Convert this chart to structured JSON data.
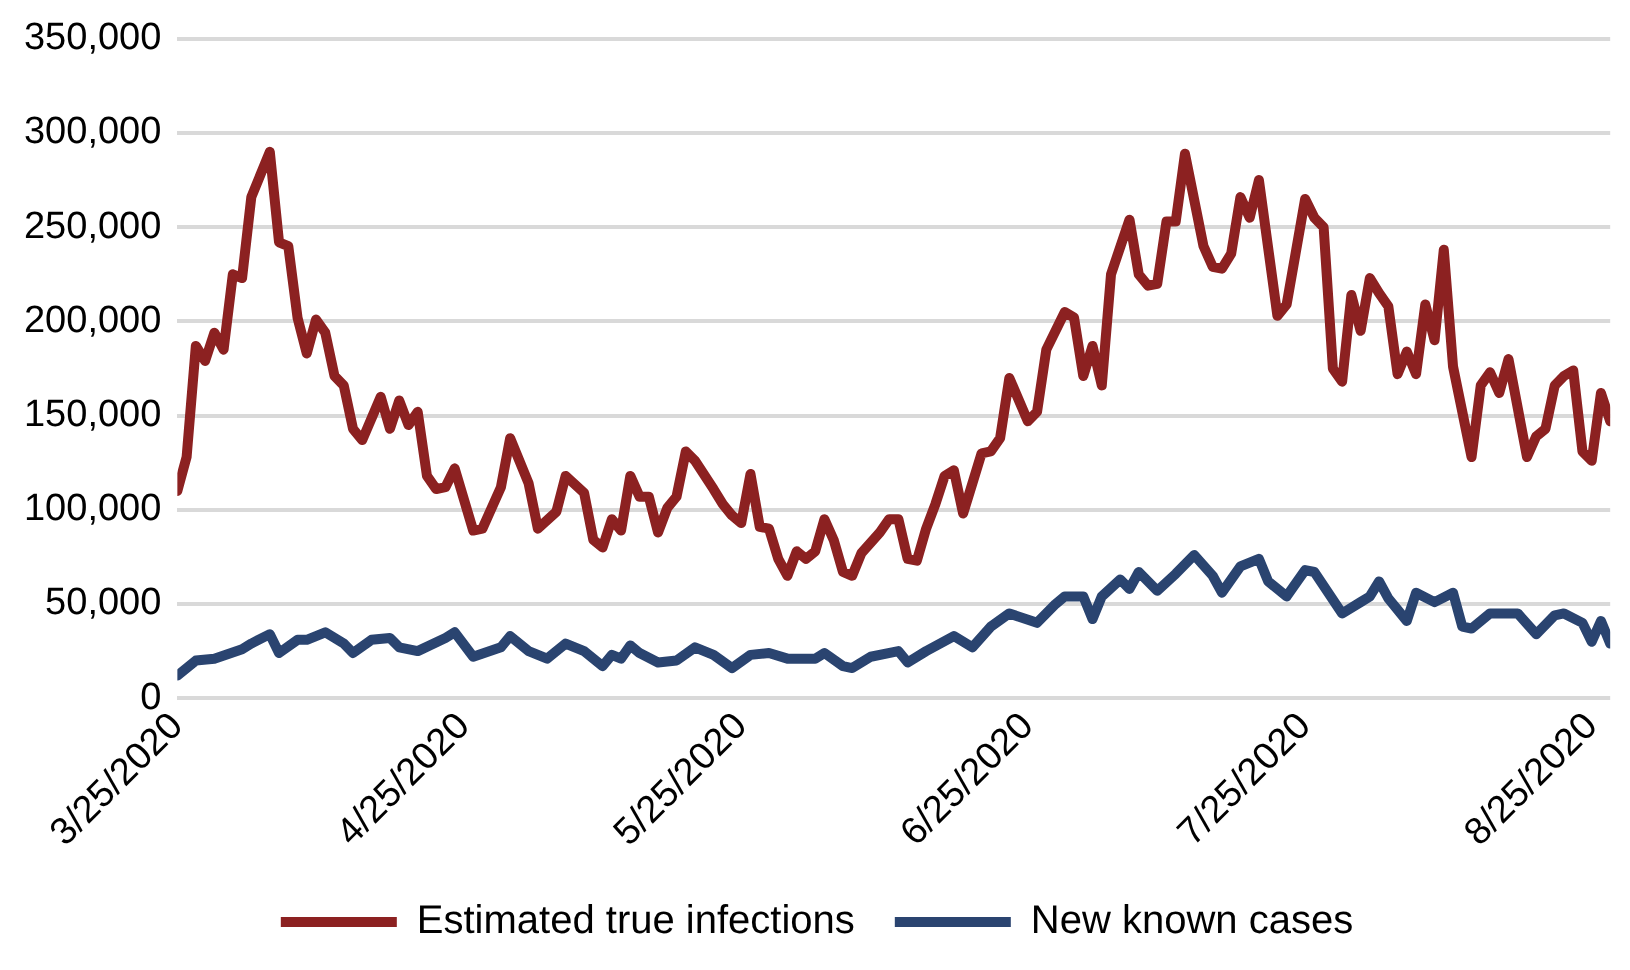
{
  "chart_data": {
    "type": "line",
    "xlim": [
      "2020-03-25",
      "2020-08-27"
    ],
    "xticks": [
      {
        "value": "2020-03-25",
        "label": "3/25/2020"
      },
      {
        "value": "2020-04-25",
        "label": "4/25/2020"
      },
      {
        "value": "2020-05-25",
        "label": "5/25/2020"
      },
      {
        "value": "2020-06-25",
        "label": "6/25/2020"
      },
      {
        "value": "2020-07-25",
        "label": "7/25/2020"
      },
      {
        "value": "2020-08-25",
        "label": "8/25/2020"
      }
    ],
    "ylim": [
      0,
      350000
    ],
    "yticks": [
      0,
      {
        "value": 50000,
        "label": "50,000"
      },
      {
        "value": 100000,
        "label": "100,000"
      },
      {
        "value": 150000,
        "label": "150,000"
      },
      {
        "value": 200000,
        "label": "200,000"
      },
      {
        "value": 250000,
        "label": "250,000"
      },
      {
        "value": 300000,
        "label": "300,000"
      },
      {
        "value": 350000,
        "label": "350,000"
      }
    ],
    "grid": "y",
    "legend": "bottom",
    "marker": "none",
    "line_style": "solid",
    "series": [
      {
        "name": "Estimated true infections",
        "color": "#8c2121",
        "x": [
          "2020-03-25",
          "2020-03-26",
          "2020-03-27",
          "2020-03-28",
          "2020-03-29",
          "2020-03-30",
          "2020-03-31",
          "2020-04-01",
          "2020-04-02",
          "2020-04-04",
          "2020-04-05",
          "2020-04-06",
          "2020-04-07",
          "2020-04-08",
          "2020-04-09",
          "2020-04-10",
          "2020-04-11",
          "2020-04-12",
          "2020-04-13",
          "2020-04-14",
          "2020-04-16",
          "2020-04-17",
          "2020-04-18",
          "2020-04-19",
          "2020-04-20",
          "2020-04-21",
          "2020-04-22",
          "2020-04-23",
          "2020-04-24",
          "2020-04-26",
          "2020-04-27",
          "2020-04-29",
          "2020-04-30",
          "2020-05-02",
          "2020-05-03",
          "2020-05-05",
          "2020-05-06",
          "2020-05-08",
          "2020-05-09",
          "2020-05-10",
          "2020-05-11",
          "2020-05-12",
          "2020-05-13",
          "2020-05-14",
          "2020-05-15",
          "2020-05-16",
          "2020-05-17",
          "2020-05-18",
          "2020-05-19",
          "2020-05-20",
          "2020-05-22",
          "2020-05-23",
          "2020-05-24",
          "2020-05-25",
          "2020-05-26",
          "2020-05-27",
          "2020-05-28",
          "2020-05-29",
          "2020-05-30",
          "2020-05-31",
          "2020-06-01",
          "2020-06-02",
          "2020-06-03",
          "2020-06-04",
          "2020-06-05",
          "2020-06-06",
          "2020-06-07",
          "2020-06-09",
          "2020-06-10",
          "2020-06-11",
          "2020-06-12",
          "2020-06-13",
          "2020-06-14",
          "2020-06-15",
          "2020-06-16",
          "2020-06-17",
          "2020-06-18",
          "2020-06-19",
          "2020-06-20",
          "2020-06-21",
          "2020-06-22",
          "2020-06-23",
          "2020-06-25",
          "2020-06-26",
          "2020-06-27",
          "2020-06-29",
          "2020-06-30",
          "2020-07-01",
          "2020-07-02",
          "2020-07-03",
          "2020-07-04",
          "2020-07-06",
          "2020-07-07",
          "2020-07-08",
          "2020-07-09",
          "2020-07-10",
          "2020-07-11",
          "2020-07-12",
          "2020-07-14",
          "2020-07-15",
          "2020-07-16",
          "2020-07-17",
          "2020-07-18",
          "2020-07-19",
          "2020-07-20",
          "2020-07-22",
          "2020-07-23",
          "2020-07-25",
          "2020-07-26",
          "2020-07-27",
          "2020-07-28",
          "2020-07-29",
          "2020-07-30",
          "2020-07-31",
          "2020-08-01",
          "2020-08-02",
          "2020-08-03",
          "2020-08-04",
          "2020-08-05",
          "2020-08-06",
          "2020-08-07",
          "2020-08-08",
          "2020-08-09",
          "2020-08-10",
          "2020-08-12",
          "2020-08-13",
          "2020-08-14",
          "2020-08-15",
          "2020-08-16",
          "2020-08-18",
          "2020-08-19",
          "2020-08-20",
          "2020-08-21",
          "2020-08-22",
          "2020-08-23",
          "2020-08-24",
          "2020-08-25",
          "2020-08-26",
          "2020-08-27"
        ],
        "values": [
          110000,
          128000,
          187000,
          179000,
          194000,
          185000,
          225000,
          223000,
          266000,
          290000,
          242000,
          240000,
          202000,
          183000,
          201000,
          194000,
          171000,
          166000,
          143000,
          137000,
          160000,
          143000,
          158000,
          145000,
          152000,
          118000,
          111000,
          112000,
          122000,
          89000,
          90000,
          112000,
          138000,
          114000,
          90000,
          99000,
          118000,
          109000,
          84000,
          80000,
          95000,
          89000,
          118000,
          107000,
          107000,
          88000,
          101000,
          107000,
          131000,
          126000,
          111000,
          103000,
          97000,
          93000,
          119000,
          91000,
          90000,
          74000,
          65000,
          78000,
          74000,
          78000,
          95000,
          84000,
          67000,
          65000,
          77000,
          88000,
          95000,
          95000,
          74000,
          73000,
          90000,
          103000,
          118000,
          121000,
          98000,
          114000,
          130000,
          131000,
          138000,
          170000,
          147000,
          152000,
          185000,
          205000,
          202000,
          171000,
          187000,
          166000,
          225000,
          254000,
          225000,
          219000,
          220000,
          253000,
          253000,
          289000,
          240000,
          229000,
          228000,
          236000,
          266000,
          255000,
          275000,
          203000,
          209000,
          265000,
          255000,
          250000,
          175000,
          168000,
          214000,
          195000,
          223000,
          215000,
          208000,
          172000,
          184000,
          172000,
          209000,
          190000,
          238000,
          176000,
          128000,
          166000,
          173000,
          162000,
          180000,
          128000,
          139000,
          143000,
          166000,
          171000,
          174000,
          131000,
          126000,
          162000,
          147000
        ]
      },
      {
        "name": "New known cases",
        "color": "#2a4470",
        "x": [
          "2020-03-25",
          "2020-03-27",
          "2020-03-29",
          "2020-04-01",
          "2020-04-02",
          "2020-04-04",
          "2020-04-05",
          "2020-04-07",
          "2020-04-08",
          "2020-04-10",
          "2020-04-12",
          "2020-04-13",
          "2020-04-15",
          "2020-04-17",
          "2020-04-18",
          "2020-04-20",
          "2020-04-23",
          "2020-04-24",
          "2020-04-26",
          "2020-04-29",
          "2020-04-30",
          "2020-05-02",
          "2020-05-04",
          "2020-05-06",
          "2020-05-08",
          "2020-05-10",
          "2020-05-11",
          "2020-05-12",
          "2020-05-13",
          "2020-05-14",
          "2020-05-16",
          "2020-05-18",
          "2020-05-20",
          "2020-05-22",
          "2020-05-24",
          "2020-05-26",
          "2020-05-28",
          "2020-05-30",
          "2020-06-02",
          "2020-06-03",
          "2020-06-05",
          "2020-06-06",
          "2020-06-08",
          "2020-06-11",
          "2020-06-12",
          "2020-06-14",
          "2020-06-17",
          "2020-06-19",
          "2020-06-21",
          "2020-06-23",
          "2020-06-26",
          "2020-06-28",
          "2020-06-29",
          "2020-07-01",
          "2020-07-02",
          "2020-07-03",
          "2020-07-05",
          "2020-07-06",
          "2020-07-07",
          "2020-07-09",
          "2020-07-11",
          "2020-07-13",
          "2020-07-15",
          "2020-07-16",
          "2020-07-18",
          "2020-07-20",
          "2020-07-21",
          "2020-07-23",
          "2020-07-25",
          "2020-07-26",
          "2020-07-29",
          "2020-07-31",
          "2020-08-01",
          "2020-08-02",
          "2020-08-03",
          "2020-08-05",
          "2020-08-06",
          "2020-08-08",
          "2020-08-10",
          "2020-08-11",
          "2020-08-12",
          "2020-08-14",
          "2020-08-17",
          "2020-08-19",
          "2020-08-21",
          "2020-08-22",
          "2020-08-24",
          "2020-08-25",
          "2020-08-26",
          "2020-08-27"
        ],
        "values": [
          12000,
          20000,
          21000,
          26000,
          29000,
          34000,
          24000,
          31000,
          31000,
          35000,
          29000,
          24000,
          31000,
          32000,
          27000,
          25000,
          32000,
          35000,
          22000,
          27000,
          33000,
          25000,
          21000,
          29000,
          25000,
          17000,
          23000,
          21000,
          28000,
          24000,
          19000,
          20000,
          27000,
          23000,
          16000,
          23000,
          24000,
          21000,
          21000,
          24000,
          17000,
          16000,
          22000,
          25000,
          19000,
          25000,
          33000,
          27000,
          38000,
          45000,
          40000,
          50000,
          54000,
          54000,
          42000,
          54000,
          63000,
          58000,
          67000,
          57000,
          66000,
          76000,
          65000,
          56000,
          70000,
          74000,
          62000,
          54000,
          68000,
          67000,
          45000,
          51000,
          54000,
          62000,
          53000,
          41000,
          56000,
          51000,
          56000,
          38000,
          37000,
          45000,
          45000,
          34000,
          44000,
          45000,
          40000,
          30000,
          41000,
          29000
        ]
      }
    ]
  }
}
